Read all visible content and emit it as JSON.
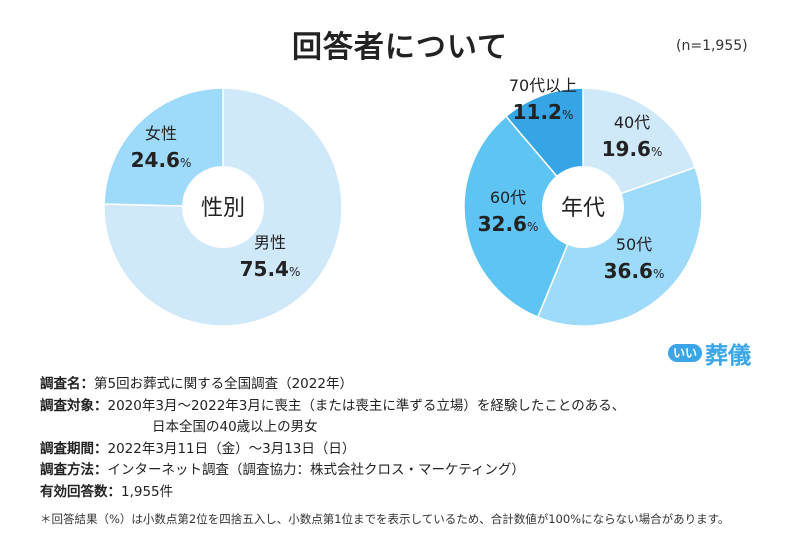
{
  "header": {
    "title": "回答者について",
    "sample": "(n=1,955)"
  },
  "chart_data": [
    {
      "type": "pie",
      "center_label": "性別",
      "slices": [
        {
          "label": "男性",
          "value": 75.4
        },
        {
          "label": "女性",
          "value": 24.6
        }
      ],
      "colors": [
        "#cfe9fb",
        "#9edafa"
      ]
    },
    {
      "type": "pie",
      "center_label": "年代",
      "slices": [
        {
          "label": "40代",
          "value": 19.6
        },
        {
          "label": "50代",
          "value": 36.6
        },
        {
          "label": "60代",
          "value": 32.6
        },
        {
          "label": "70代以上",
          "value": 11.2
        }
      ],
      "colors": [
        "#cfe9fb",
        "#9edafa",
        "#5ec4f3",
        "#36a5e6"
      ]
    }
  ],
  "logo": {
    "badge": "いい",
    "text": "葬儀"
  },
  "survey": {
    "name_label": "調査名：",
    "name": "第5回お葬式に関する全国調査（2022年）",
    "target_label": "調査対象：",
    "target_line1": "2020年3月〜2022年3月に喪主（または喪主に準ずる立場）を経験したことのある、",
    "target_line2": "日本全国の40歳以上の男女",
    "period_label": "調査期間：",
    "period": "2022年3月11日（金）〜3月13日（日）",
    "method_label": "調査方法：",
    "method": "インターネット調査（調査協力：株式会社クロス・マーケティング）",
    "count_label": "有効回答数：",
    "count": "1,955件"
  },
  "note": "＊回答結果（%）は小数点第2位を四捨五入し、小数点第1位までを表示しているため、合計数値が100%にならない場合があります。"
}
